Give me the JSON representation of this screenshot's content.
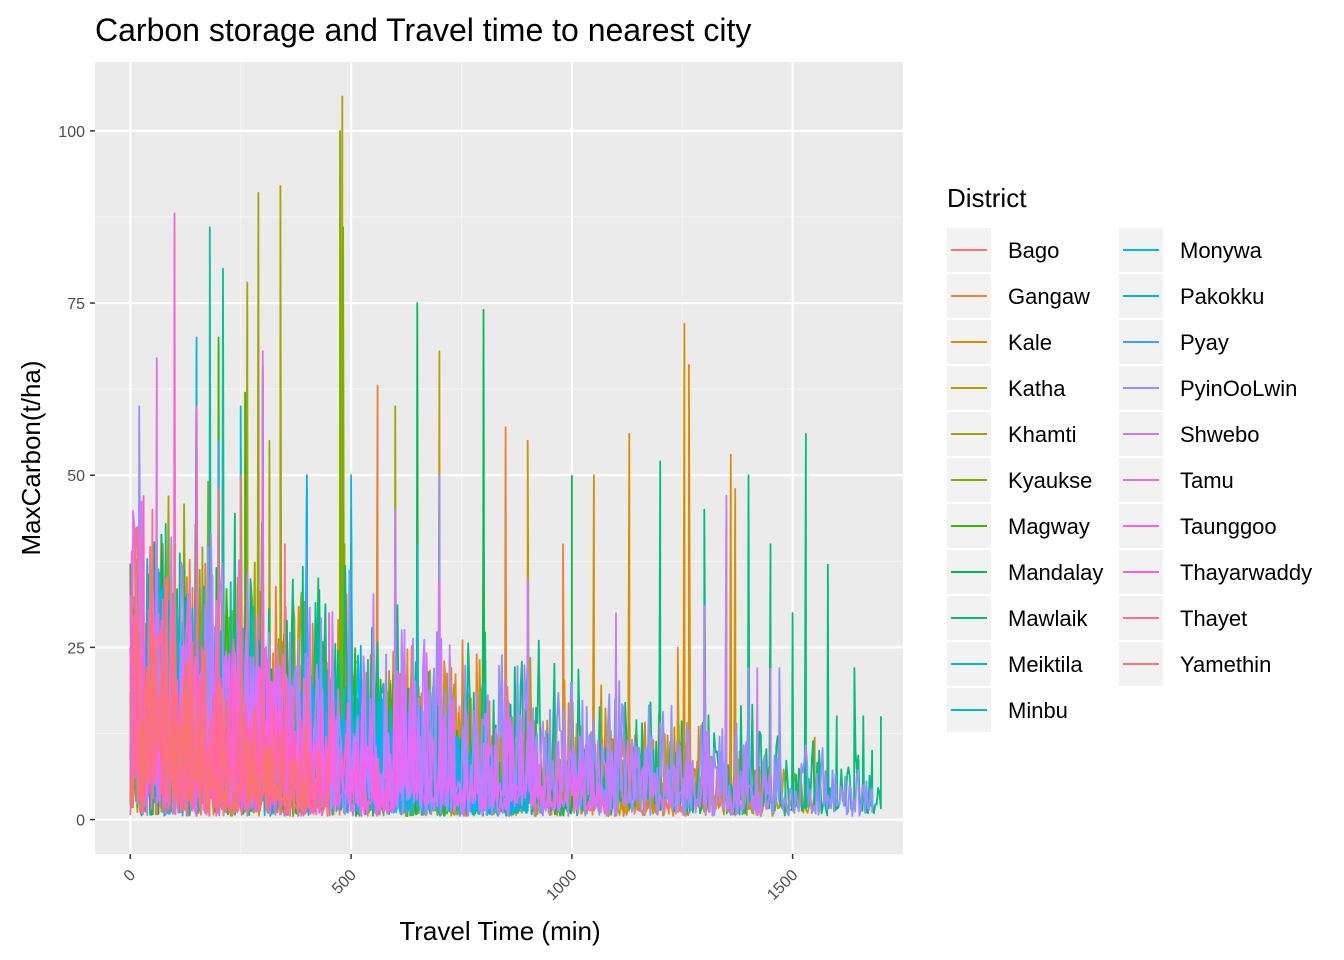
{
  "chart_data": {
    "type": "line",
    "title": "Carbon storage and Travel time to nearest city",
    "xlabel": "Travel Time (min)",
    "ylabel": "MaxCarbon(t/ha)",
    "xlim": [
      -80,
      1750
    ],
    "ylim": [
      -5,
      110
    ],
    "x_ticks": [
      0,
      500,
      1000,
      1500
    ],
    "x_tick_labels": [
      "0",
      "500",
      "1000",
      "1500"
    ],
    "y_ticks": [
      0,
      25,
      50,
      75,
      100
    ],
    "y_tick_labels": [
      "0",
      "25",
      "50",
      "75",
      "100"
    ],
    "grid": true,
    "legend": {
      "title": "District",
      "placement": "right",
      "columns": 2
    },
    "series": [
      {
        "name": "Bago",
        "color": "#F8766D",
        "xmax": 1270,
        "spike": [
          10,
          35
        ],
        "points": [
          [
            1050,
            6
          ],
          [
            1080,
            2
          ],
          [
            1120,
            9
          ],
          [
            1150,
            4
          ],
          [
            1200,
            12
          ],
          [
            1230,
            5
          ],
          [
            1270,
            2
          ]
        ]
      },
      {
        "name": "Gangaw",
        "color": "#EA8331",
        "xmax": 1380,
        "spike": [
          20,
          45
        ],
        "points": [
          [
            560,
            63
          ],
          [
            600,
            30
          ],
          [
            850,
            57
          ],
          [
            980,
            40
          ],
          [
            1100,
            8
          ],
          [
            1300,
            25
          ],
          [
            1380,
            10
          ]
        ]
      },
      {
        "name": "Kale",
        "color": "#D89000",
        "xmax": 1550,
        "spike": [
          15,
          40
        ],
        "points": [
          [
            1050,
            50
          ],
          [
            1130,
            56
          ],
          [
            1240,
            25
          ],
          [
            1255,
            72
          ],
          [
            1265,
            66
          ],
          [
            1360,
            53
          ],
          [
            1370,
            48
          ],
          [
            1420,
            10
          ],
          [
            1500,
            10
          ],
          [
            1550,
            12
          ]
        ]
      },
      {
        "name": "Katha",
        "color": "#C09B00",
        "xmax": 1450,
        "spike": [
          15,
          40
        ],
        "points": [
          [
            700,
            68
          ],
          [
            800,
            40
          ],
          [
            900,
            55
          ],
          [
            1000,
            14
          ],
          [
            1100,
            12
          ],
          [
            1200,
            14
          ],
          [
            1300,
            11
          ],
          [
            1400,
            12
          ],
          [
            1450,
            10
          ]
        ]
      },
      {
        "name": "Khamti",
        "color": "#A3A500",
        "xmax": 900,
        "spike": [
          25,
          55
        ],
        "points": [
          [
            265,
            78
          ],
          [
            290,
            91
          ],
          [
            315,
            55
          ],
          [
            340,
            92
          ],
          [
            480,
            105
          ],
          [
            485,
            40
          ],
          [
            600,
            60
          ],
          [
            700,
            50
          ],
          [
            800,
            45
          ],
          [
            900,
            10
          ]
        ]
      },
      {
        "name": "Kyaukse",
        "color": "#7CAE00",
        "xmax": 750,
        "spike": [
          20,
          45
        ],
        "points": [
          [
            475,
            100
          ],
          [
            482,
            86
          ],
          [
            500,
            40
          ],
          [
            600,
            30
          ],
          [
            700,
            25
          ],
          [
            750,
            5
          ]
        ]
      },
      {
        "name": "Magway",
        "color": "#39B600",
        "xmax": 900,
        "spike": [
          20,
          45
        ],
        "points": [
          [
            200,
            70
          ],
          [
            260,
            62
          ],
          [
            500,
            40
          ],
          [
            700,
            30
          ],
          [
            900,
            20
          ]
        ]
      },
      {
        "name": "Mandalay",
        "color": "#00BB4E",
        "xmax": 1000,
        "spike": [
          20,
          45
        ],
        "points": [
          [
            150,
            68
          ],
          [
            300,
            55
          ],
          [
            650,
            75
          ],
          [
            800,
            74
          ],
          [
            1000,
            50
          ]
        ]
      },
      {
        "name": "Mawlaik",
        "color": "#00BF7D",
        "xmax": 1700,
        "spike": [
          20,
          45
        ],
        "points": [
          [
            1200,
            52
          ],
          [
            1300,
            45
          ],
          [
            1400,
            50
          ],
          [
            1450,
            40
          ],
          [
            1500,
            30
          ],
          [
            1530,
            56
          ],
          [
            1560,
            10
          ],
          [
            1580,
            37
          ],
          [
            1600,
            15
          ],
          [
            1640,
            22
          ],
          [
            1660,
            15
          ],
          [
            1680,
            10
          ],
          [
            1700,
            15
          ]
        ]
      },
      {
        "name": "Meiktila",
        "color": "#00C1A3",
        "xmax": 900,
        "spike": [
          20,
          45
        ],
        "points": [
          [
            180,
            86
          ],
          [
            210,
            80
          ],
          [
            400,
            48
          ],
          [
            600,
            40
          ],
          [
            900,
            22
          ]
        ]
      },
      {
        "name": "Minbu",
        "color": "#00BFC4",
        "xmax": 800,
        "spike": [
          20,
          40
        ],
        "points": [
          [
            300,
            66
          ],
          [
            500,
            45
          ],
          [
            650,
            40
          ],
          [
            800,
            20
          ]
        ]
      },
      {
        "name": "Monywa",
        "color": "#00BAE0",
        "xmax": 900,
        "spike": [
          20,
          40
        ],
        "points": [
          [
            150,
            70
          ],
          [
            250,
            60
          ],
          [
            500,
            50
          ],
          [
            700,
            40
          ],
          [
            900,
            20
          ]
        ]
      },
      {
        "name": "Pakokku",
        "color": "#00B0F6",
        "xmax": 900,
        "spike": [
          20,
          40
        ],
        "points": [
          [
            300,
            65
          ],
          [
            400,
            50
          ],
          [
            600,
            40
          ],
          [
            900,
            10
          ]
        ]
      },
      {
        "name": "Pyay",
        "color": "#35A2FF",
        "xmax": 700,
        "spike": [
          20,
          40
        ],
        "points": [
          [
            200,
            55
          ],
          [
            400,
            40
          ],
          [
            700,
            20
          ]
        ]
      },
      {
        "name": "PyinOoLwin",
        "color": "#9590FF",
        "xmax": 1680,
        "spike": [
          20,
          42
        ],
        "points": [
          [
            20,
            60
          ],
          [
            700,
            50
          ],
          [
            900,
            33
          ],
          [
            1000,
            18
          ],
          [
            1100,
            20
          ],
          [
            1200,
            14
          ],
          [
            1300,
            31
          ],
          [
            1350,
            45
          ],
          [
            1400,
            22
          ],
          [
            1440,
            6
          ],
          [
            1470,
            22
          ],
          [
            1510,
            3
          ],
          [
            1680,
            1
          ]
        ]
      },
      {
        "name": "Shwebo",
        "color": "#C77CFF",
        "xmax": 1450,
        "spike": [
          20,
          42
        ],
        "points": [
          [
            600,
            45
          ],
          [
            900,
            35
          ],
          [
            1100,
            30
          ],
          [
            1300,
            31
          ],
          [
            1350,
            47
          ],
          [
            1420,
            22
          ],
          [
            1450,
            22
          ]
        ]
      },
      {
        "name": "Tamu",
        "color": "#E76BF3",
        "xmax": 1080,
        "spike": [
          20,
          45
        ],
        "points": [
          [
            60,
            67
          ],
          [
            300,
            68
          ],
          [
            700,
            35
          ],
          [
            950,
            5
          ],
          [
            1080,
            4
          ]
        ]
      },
      {
        "name": "Taunggoo",
        "color": "#FA62DB",
        "xmax": 600,
        "spike": [
          20,
          45
        ],
        "points": [
          [
            100,
            88
          ],
          [
            150,
            60
          ],
          [
            300,
            50
          ],
          [
            450,
            30
          ],
          [
            600,
            15
          ]
        ]
      },
      {
        "name": "Thayarwaddy",
        "color": "#FF62BC",
        "xmax": 450,
        "spike": [
          20,
          45
        ],
        "points": [
          [
            30,
            47
          ],
          [
            150,
            50
          ],
          [
            300,
            40
          ],
          [
            450,
            20
          ]
        ]
      },
      {
        "name": "Thayet",
        "color": "#FF6C91",
        "xmax": 450,
        "spike": [
          20,
          45
        ],
        "points": [
          [
            50,
            45
          ],
          [
            200,
            48
          ],
          [
            350,
            40
          ],
          [
            450,
            15
          ]
        ]
      },
      {
        "name": "Yamethin",
        "color": "#F8766D",
        "xmax": 400,
        "spike": [
          20,
          45
        ],
        "points": [
          [
            100,
            40
          ],
          [
            250,
            50
          ],
          [
            400,
            20
          ]
        ]
      }
    ]
  }
}
